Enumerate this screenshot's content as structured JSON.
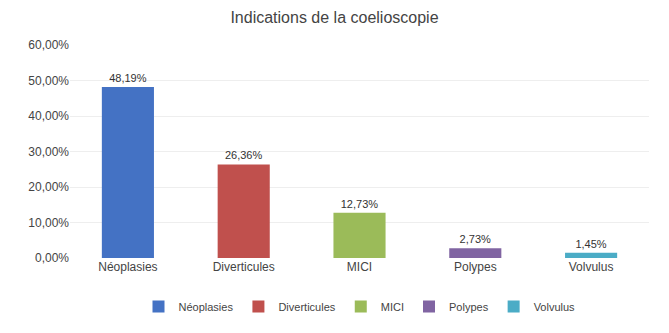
{
  "chart_data": {
    "type": "bar",
    "title": "Indications de la coelioscopie",
    "categories": [
      "Néoplasies",
      "Diverticules",
      "MICI",
      "Polypes",
      "Volvulus"
    ],
    "values": [
      48.19,
      26.36,
      12.73,
      2.73,
      1.45
    ],
    "value_labels": [
      "48,19%",
      "26,36%",
      "12,73%",
      "2,73%",
      "1,45%"
    ],
    "colors": [
      "#4472C4",
      "#C0504D",
      "#9BBB59",
      "#8064A2",
      "#4BACC6"
    ],
    "ylim": [
      0,
      60
    ],
    "yticks": [
      {
        "value": 0,
        "label": "0,00%"
      },
      {
        "value": 10,
        "label": "10,00%"
      },
      {
        "value": 20,
        "label": "20,00%"
      },
      {
        "value": 30,
        "label": "30,00%"
      },
      {
        "value": 40,
        "label": "40,00%"
      },
      {
        "value": 50,
        "label": "50,00%"
      },
      {
        "value": 60,
        "label": "60,00%"
      }
    ],
    "grid": true,
    "legend": "bottom",
    "data_labels": true
  }
}
